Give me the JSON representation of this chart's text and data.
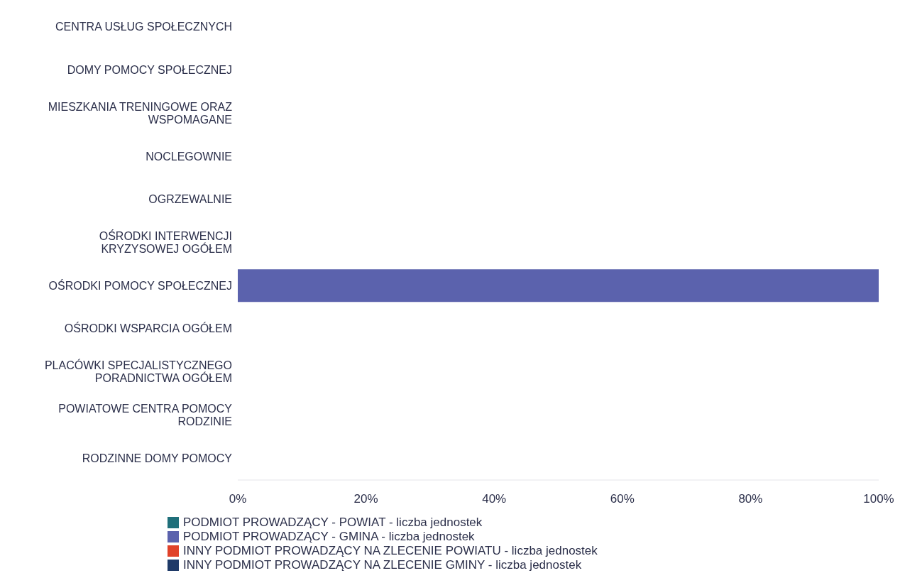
{
  "chart_data": {
    "type": "bar",
    "orientation": "horizontal",
    "stacked": true,
    "categories": [
      "CENTRA USŁUG SPOŁECZNYCH",
      "DOMY POMOCY SPOŁECZNEJ",
      "MIESZKANIA TRENINGOWE ORAZ WSPOMAGANE",
      "NOCLEGOWNIE",
      "OGRZEWALNIE",
      "OŚRODKI INTERWENCJI KRYZYSOWEJ OGÓŁEM",
      "OŚRODKI POMOCY SPOŁECZNEJ",
      "OŚRODKI WSPARCIA OGÓŁEM",
      "PLACÓWKI SPECJALISTYCZNEGO PORADNICTWA OGÓŁEM",
      "POWIATOWE CENTRA POMOCY RODZINIE",
      "RODZINNE DOMY POMOCY"
    ],
    "series": [
      {
        "name": "PODMIOT PROWADZĄCY - POWIAT - liczba jednostek",
        "color": "#1f6f7a",
        "values": [
          0,
          0,
          0,
          0,
          0,
          0,
          0,
          0,
          0,
          0,
          0
        ]
      },
      {
        "name": "PODMIOT PROWADZĄCY - GMINA - liczba jednostek",
        "color": "#5b62ad",
        "values": [
          0,
          0,
          0,
          0,
          0,
          0,
          100,
          0,
          0,
          0,
          0
        ]
      },
      {
        "name": "INNY PODMIOT PROWADZĄCY NA ZLECENIE POWIATU - liczba jednostek",
        "color": "#e0422a",
        "values": [
          0,
          0,
          0,
          0,
          0,
          0,
          0,
          0,
          0,
          0,
          0
        ]
      },
      {
        "name": "INNY PODMIOT PROWADZĄCY NA ZLECENIE GMINY - liczba jednostek",
        "color": "#1f3a68",
        "values": [
          0,
          0,
          0,
          0,
          0,
          0,
          0,
          0,
          0,
          0,
          0
        ]
      }
    ],
    "xlim": [
      0,
      100
    ],
    "xticks": [
      {
        "value": 0,
        "label": "0%"
      },
      {
        "value": 20,
        "label": "20%"
      },
      {
        "value": 40,
        "label": "40%"
      },
      {
        "value": 60,
        "label": "60%"
      },
      {
        "value": 80,
        "label": "80%"
      },
      {
        "value": 100,
        "label": "100%"
      }
    ],
    "grid": false,
    "legend": "bottom"
  }
}
